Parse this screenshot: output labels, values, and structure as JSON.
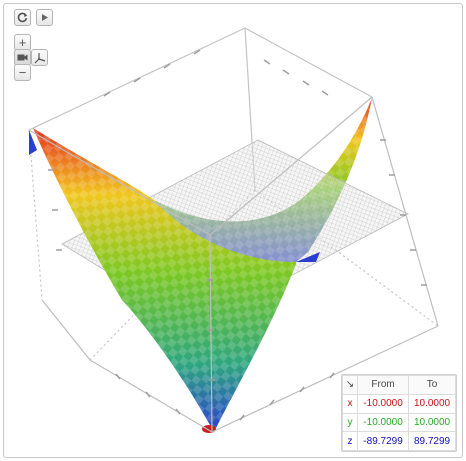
{
  "toolbar": {
    "reset_icon": "refresh-icon",
    "play_icon": "play-icon",
    "zoom_in_label": "+",
    "zoom_out_label": "−",
    "camera_icon": "camera-icon",
    "axes_icon": "axes-icon"
  },
  "surface": {
    "grid_plane": true,
    "colors": {
      "high": "#e53222",
      "upper": "#f1c71f",
      "mid": "#7bc824",
      "lower": "#2ea680",
      "low": "#2a3fd0"
    }
  },
  "range_table": {
    "corner_icon": "↘",
    "col_from": "From",
    "col_to": "To",
    "rows": [
      {
        "var": "x",
        "from": "-10.0000",
        "to": "10.0000",
        "color": "#cc1111"
      },
      {
        "var": "y",
        "from": "-10.0000",
        "to": "10.0000",
        "color": "#22aa22"
      },
      {
        "var": "z",
        "from": "-89.7299",
        "to": "89.7299",
        "color": "#1111bb"
      }
    ]
  }
}
